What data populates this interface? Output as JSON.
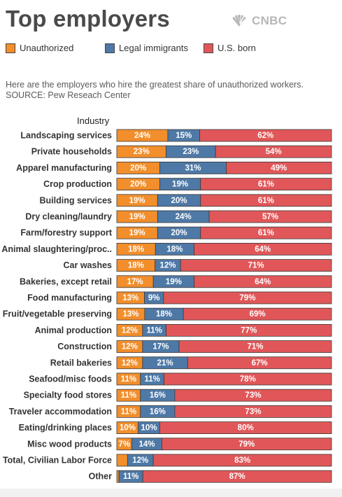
{
  "title": "Top employers",
  "logo": {
    "text": "CNBC",
    "icon": "nbc-peacock-icon"
  },
  "legend": [
    {
      "label": "Unauthorized",
      "color": "#f28e2b"
    },
    {
      "label": "Legal immigrants",
      "color": "#4e79a7"
    },
    {
      "label": "U.S. born",
      "color": "#e15759"
    }
  ],
  "caption": {
    "line1": "Here are the employers who hire the greatest share of unauthorized workers.",
    "line2": "SOURCE: Pew Reseach Center"
  },
  "chart_data": {
    "type": "bar",
    "orientation": "horizontal",
    "stacked": "100%",
    "category_header": "Industry",
    "categories": [
      "Landscaping services",
      "Private households",
      "Apparel manufacturing",
      "Crop production",
      "Building services",
      "Dry cleaning/laundry",
      "Farm/forestry support",
      "Animal slaughtering/proc..",
      "Car washes",
      "Bakeries, except retail",
      "Food manufacturing",
      "Fruit/vegetable preserving",
      "Animal production",
      "Construction",
      "Retail bakeries",
      "Seafood/misc foods",
      "Specialty food stores",
      "Traveler accommodation",
      "Eating/drinking places",
      "Misc wood products",
      "Total, Civilian Labor Force",
      "Other"
    ],
    "series": [
      {
        "name": "Unauthorized",
        "color": "#f28e2b",
        "values": [
          24,
          23,
          20,
          20,
          19,
          19,
          19,
          18,
          18,
          17,
          13,
          13,
          12,
          12,
          12,
          11,
          11,
          11,
          10,
          7,
          5,
          1
        ],
        "labels": [
          "24%",
          "23%",
          "20%",
          "20%",
          "19%",
          "19%",
          "19%",
          "18%",
          "18%",
          "17%",
          "13%",
          "13%",
          "12%",
          "12%",
          "12%",
          "11%",
          "11%",
          "11%",
          "10%",
          "7%",
          "",
          ""
        ]
      },
      {
        "name": "Legal immigrants",
        "color": "#4e79a7",
        "values": [
          15,
          23,
          31,
          19,
          20,
          24,
          20,
          18,
          12,
          19,
          9,
          18,
          11,
          17,
          21,
          11,
          16,
          16,
          10,
          14,
          12,
          11
        ],
        "labels": [
          "15%",
          "23%",
          "31%",
          "19%",
          "20%",
          "24%",
          "20%",
          "18%",
          "12%",
          "19%",
          "9%",
          "18%",
          "11%",
          "17%",
          "21%",
          "11%",
          "16%",
          "16%",
          "10%",
          "14%",
          "12%",
          "11%"
        ]
      },
      {
        "name": "U.S. born",
        "color": "#e15759",
        "values": [
          62,
          54,
          49,
          61,
          61,
          57,
          61,
          64,
          71,
          64,
          79,
          69,
          77,
          71,
          67,
          78,
          73,
          73,
          80,
          79,
          83,
          87
        ],
        "labels": [
          "62%",
          "54%",
          "49%",
          "61%",
          "61%",
          "57%",
          "61%",
          "64%",
          "71%",
          "64%",
          "79%",
          "69%",
          "77%",
          "71%",
          "67%",
          "78%",
          "73%",
          "73%",
          "80%",
          "79%",
          "83%",
          "87%"
        ]
      }
    ],
    "xlim": [
      0,
      100
    ],
    "grid": false,
    "legend_position": "top"
  }
}
